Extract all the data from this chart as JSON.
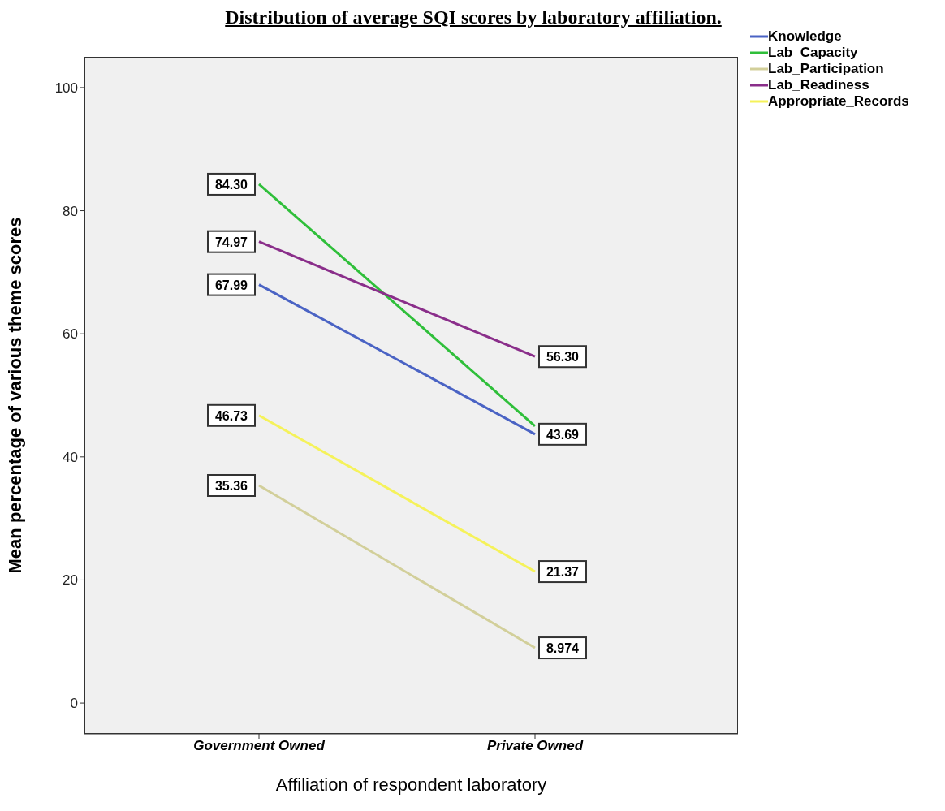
{
  "chart_data": {
    "type": "line",
    "title": "Distribution of average SQI scores by laboratory affiliation.",
    "xlabel": "Affiliation of respondent laboratory",
    "ylabel": "Mean percentage of various theme scores",
    "categories": [
      "Government Owned",
      "Private Owned"
    ],
    "series": [
      {
        "name": "Knowledge",
        "color": "#4a63c4",
        "values": [
          67.99,
          43.69
        ],
        "value_labels": [
          "67.99",
          "43.69"
        ]
      },
      {
        "name": "Lab_Capacity",
        "color": "#2fbf3a",
        "values": [
          84.3,
          45
        ],
        "value_labels": [
          "84.30",
          null
        ]
      },
      {
        "name": "Lab_Participation",
        "color": "#d2cf9a",
        "values": [
          35.36,
          8.974
        ],
        "value_labels": [
          "35.36",
          "8.974"
        ]
      },
      {
        "name": "Lab_Readiness",
        "color": "#8a2e8a",
        "values": [
          74.97,
          56.3
        ],
        "value_labels": [
          "74.97",
          "56.30"
        ]
      },
      {
        "name": "Appropriate_Records",
        "color": "#f5f25a",
        "values": [
          46.73,
          21.37
        ],
        "value_labels": [
          "46.73",
          "21.37"
        ]
      }
    ],
    "ylim": [
      -5,
      105
    ],
    "yticks": [
      0,
      20,
      40,
      60,
      80,
      100
    ],
    "grid": false,
    "legend": "top right",
    "marker": "none",
    "line_style": "solid"
  }
}
